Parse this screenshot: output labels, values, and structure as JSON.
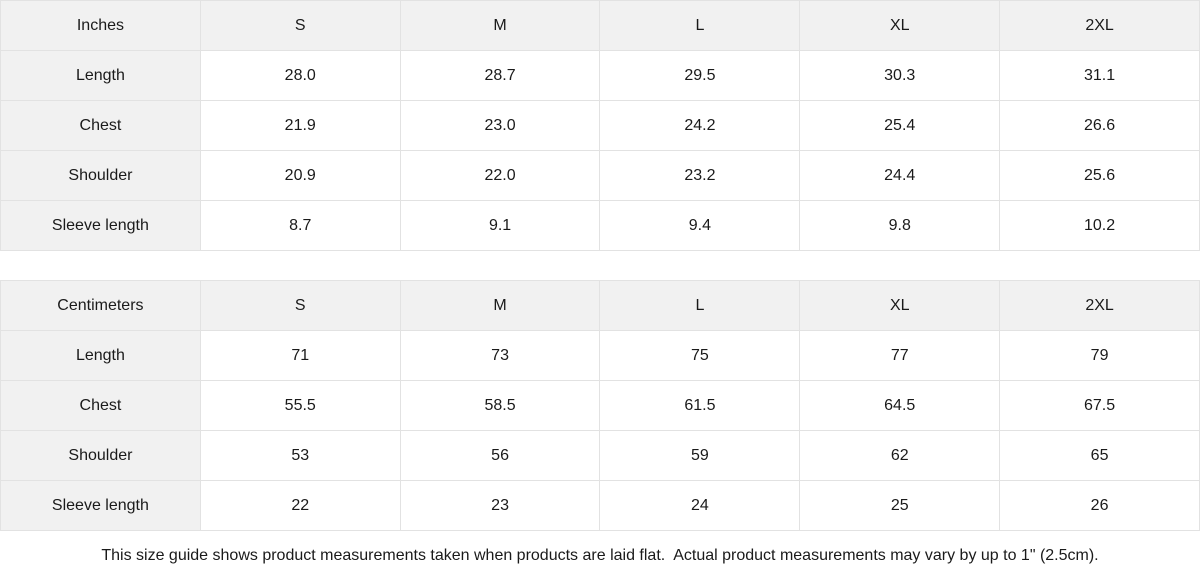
{
  "colors": {
    "header_bg": "#f1f1f1",
    "border": "#e2e2e2",
    "text": "#1a1a1a"
  },
  "tables": [
    {
      "id": "inches",
      "unit_label": "Inches",
      "sizes": [
        "S",
        "M",
        "L",
        "XL",
        "2XL"
      ],
      "rows": [
        {
          "label": "Length",
          "values": [
            "28.0",
            "28.7",
            "29.5",
            "30.3",
            "31.1"
          ]
        },
        {
          "label": "Chest",
          "values": [
            "21.9",
            "23.0",
            "24.2",
            "25.4",
            "26.6"
          ]
        },
        {
          "label": "Shoulder",
          "values": [
            "20.9",
            "22.0",
            "23.2",
            "24.4",
            "25.6"
          ]
        },
        {
          "label": "Sleeve length",
          "values": [
            "8.7",
            "9.1",
            "9.4",
            "9.8",
            "10.2"
          ]
        }
      ]
    },
    {
      "id": "centimeters",
      "unit_label": "Centimeters",
      "sizes": [
        "S",
        "M",
        "L",
        "XL",
        "2XL"
      ],
      "rows": [
        {
          "label": "Length",
          "values": [
            "71",
            "73",
            "75",
            "77",
            "79"
          ]
        },
        {
          "label": "Chest",
          "values": [
            "55.5",
            "58.5",
            "61.5",
            "64.5",
            "67.5"
          ]
        },
        {
          "label": "Shoulder",
          "values": [
            "53",
            "56",
            "59",
            "62",
            "65"
          ]
        },
        {
          "label": "Sleeve length",
          "values": [
            "22",
            "23",
            "24",
            "25",
            "26"
          ]
        }
      ]
    }
  ],
  "footer": {
    "note": "This size guide shows product measurements taken when products are laid flat.  Actual product measurements may vary by up to 1\" (2.5cm)."
  }
}
